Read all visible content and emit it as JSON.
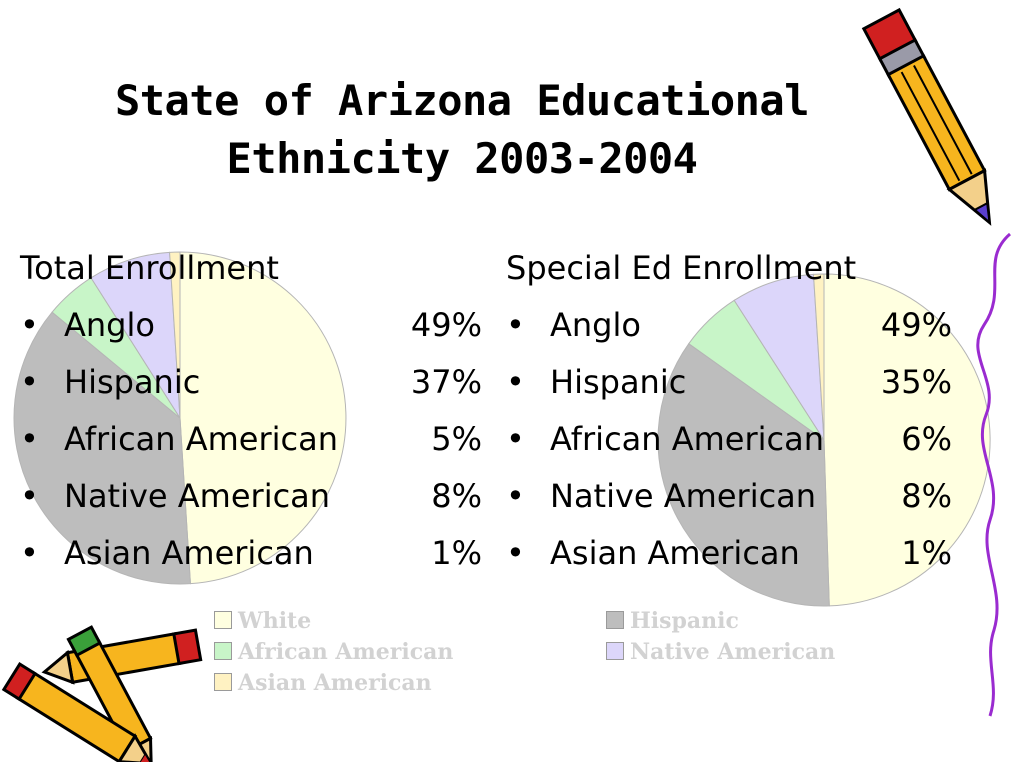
{
  "title_lines": [
    "State of Arizona Educational",
    "Ethnicity 2003-2004"
  ],
  "chart_data": [
    {
      "type": "pie",
      "title": "Total Enrollment",
      "categories": [
        "Anglo",
        "Hispanic",
        "African American",
        "Native American",
        "Asian American"
      ],
      "values": [
        49,
        37,
        5,
        8,
        1
      ],
      "value_labels": [
        "49%",
        "37%",
        "5%",
        "8%",
        "1%"
      ],
      "colors": [
        "#FFFFE0",
        "#BDBDBD",
        "#C8F5C8",
        "#DCD6FA",
        "#FFF2C2"
      ],
      "legend_position": "bottom"
    },
    {
      "type": "pie",
      "title": "Special Ed Enrollment",
      "categories": [
        "Anglo",
        "Hispanic",
        "African American",
        "Native American",
        "Asian American"
      ],
      "values": [
        49,
        35,
        6,
        8,
        1
      ],
      "value_labels": [
        "49%",
        "35%",
        "6%",
        "8%",
        "1%"
      ],
      "colors": [
        "#FFFFE0",
        "#BDBDBD",
        "#C8F5C8",
        "#DCD6FA",
        "#FFF2C2"
      ],
      "legend_position": "bottom"
    }
  ],
  "legend": {
    "entries": [
      "White",
      "Hispanic",
      "African American",
      "Native American",
      "Asian American"
    ],
    "colors": [
      "#FFFFE0",
      "#BDBDBD",
      "#C8F5C8",
      "#DCD6FA",
      "#FFF2C2"
    ]
  },
  "bullet_glyph": "•",
  "decorations": [
    "pencil-icon",
    "crayons-icon"
  ]
}
